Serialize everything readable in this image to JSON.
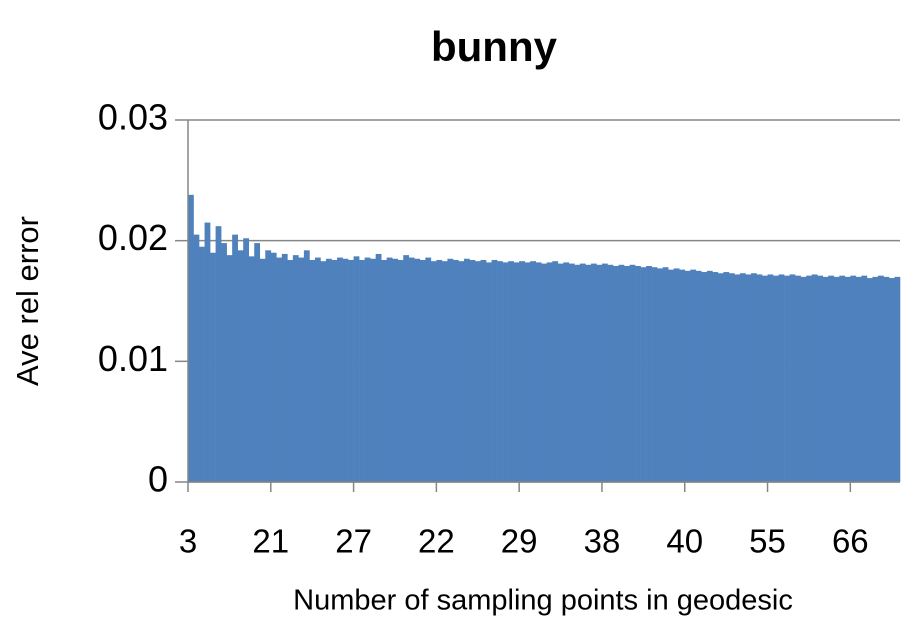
{
  "chart_data": {
    "type": "bar",
    "title": "bunny",
    "x_label": "Number of sampling points in geodesic",
    "y_label": "Ave rel error",
    "categories": [
      3,
      null,
      null,
      null,
      null,
      null,
      null,
      null,
      null,
      null,
      null,
      null,
      null,
      null,
      null,
      21,
      null,
      null,
      null,
      null,
      null,
      null,
      null,
      null,
      null,
      null,
      null,
      null,
      null,
      null,
      27,
      null,
      null,
      null,
      null,
      null,
      null,
      null,
      null,
      null,
      null,
      null,
      null,
      null,
      null,
      22,
      null,
      null,
      null,
      null,
      null,
      null,
      null,
      null,
      null,
      null,
      null,
      null,
      null,
      null,
      29,
      null,
      null,
      null,
      null,
      null,
      null,
      null,
      null,
      null,
      null,
      null,
      null,
      null,
      null,
      38,
      null,
      null,
      null,
      null,
      null,
      null,
      null,
      null,
      null,
      null,
      null,
      null,
      null,
      null,
      40,
      null,
      null,
      null,
      null,
      null,
      null,
      null,
      null,
      null,
      null,
      null,
      null,
      null,
      null,
      55,
      null,
      null,
      null,
      null,
      null,
      null,
      null,
      null,
      null,
      null,
      null,
      null,
      null,
      null,
      66,
      null,
      null,
      null,
      null,
      null,
      null,
      null,
      null
    ],
    "values": [
      0.0238,
      0.0205,
      0.0195,
      0.0215,
      0.019,
      0.0212,
      0.0198,
      0.0188,
      0.0205,
      0.0192,
      0.0202,
      0.0187,
      0.0198,
      0.0185,
      0.0192,
      0.019,
      0.0186,
      0.0189,
      0.0184,
      0.0188,
      0.0186,
      0.0192,
      0.0184,
      0.0186,
      0.0183,
      0.0185,
      0.0184,
      0.0186,
      0.0185,
      0.0184,
      0.0187,
      0.0184,
      0.0186,
      0.0185,
      0.0189,
      0.0184,
      0.0186,
      0.0185,
      0.0184,
      0.0188,
      0.0186,
      0.0185,
      0.0184,
      0.0186,
      0.0183,
      0.0184,
      0.0183,
      0.0185,
      0.0184,
      0.0183,
      0.0185,
      0.0184,
      0.0183,
      0.0184,
      0.0182,
      0.0184,
      0.0183,
      0.0182,
      0.0183,
      0.0182,
      0.0183,
      0.0182,
      0.0183,
      0.0182,
      0.0181,
      0.0182,
      0.0183,
      0.0181,
      0.0182,
      0.0181,
      0.018,
      0.0181,
      0.018,
      0.0181,
      0.018,
      0.0181,
      0.018,
      0.0179,
      0.018,
      0.0179,
      0.018,
      0.0179,
      0.0178,
      0.0179,
      0.0178,
      0.0177,
      0.0178,
      0.0176,
      0.0177,
      0.0176,
      0.0175,
      0.0176,
      0.0175,
      0.0174,
      0.0175,
      0.0174,
      0.0173,
      0.0174,
      0.0173,
      0.0172,
      0.0173,
      0.0172,
      0.0173,
      0.0172,
      0.0171,
      0.0172,
      0.0171,
      0.0172,
      0.0171,
      0.0172,
      0.0171,
      0.017,
      0.0171,
      0.0172,
      0.0171,
      0.017,
      0.0171,
      0.017,
      0.0171,
      0.017,
      0.0171,
      0.017,
      0.0171,
      0.0169,
      0.017,
      0.0171,
      0.017,
      0.0169,
      0.017
    ],
    "color": "#4f81bd",
    "ylim": [
      0,
      0.03
    ],
    "yticks": [
      0,
      0.01,
      0.02,
      0.03
    ],
    "grid": true
  }
}
